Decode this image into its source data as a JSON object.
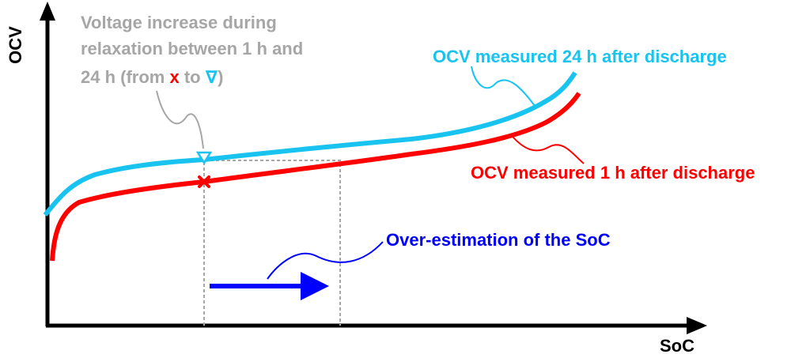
{
  "axes": {
    "y_label": "OCV",
    "x_label": "SoC"
  },
  "annotations": {
    "relaxation_line1": "Voltage increase during",
    "relaxation_line2": "relaxation between 1 h and",
    "relaxation_line3_prefix": "24 h (from ",
    "relaxation_marker_x": "x",
    "relaxation_mid": " to ",
    "relaxation_marker_tri": "∇",
    "relaxation_suffix": ")",
    "ocv_24h": "OCV measured 24 h after discharge",
    "ocv_1h": "OCV measured 1 h after discharge",
    "overestimation": "Over-estimation of the SoC"
  },
  "colors": {
    "ocv_24h": "#19c3f0",
    "ocv_1h": "#ff0000",
    "overestimation": "#0000ff",
    "annotation_gray": "#a6a6a6",
    "axis": "#000000"
  }
}
